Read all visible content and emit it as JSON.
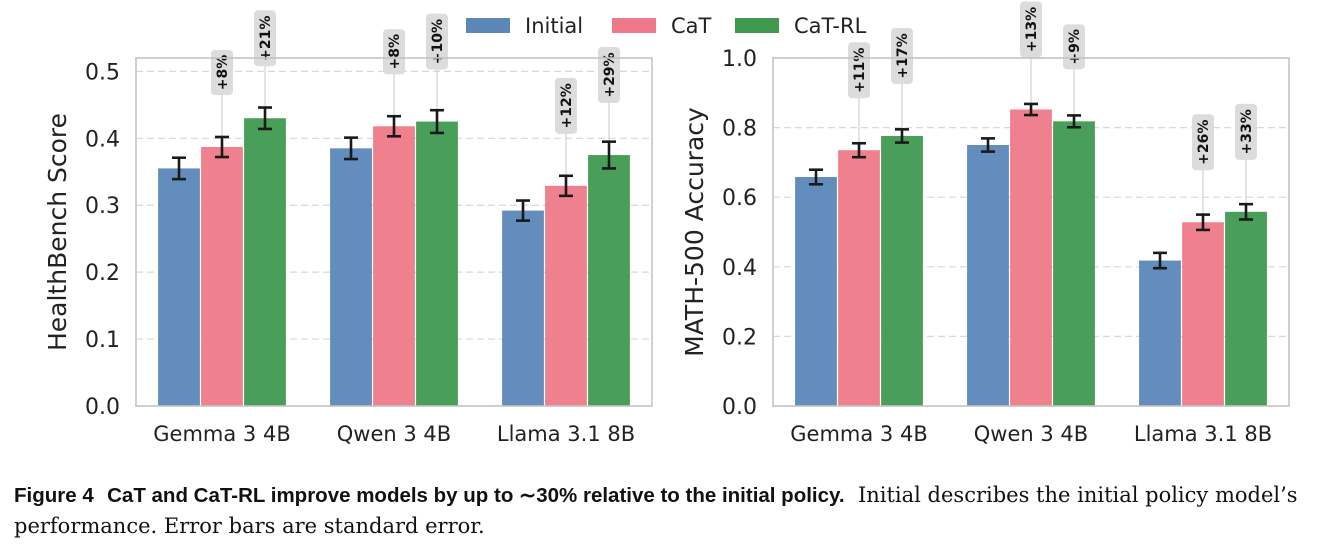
{
  "legend": {
    "placement": "top-center",
    "entries": [
      {
        "name": "Initial",
        "color": "#5b87b8"
      },
      {
        "name": "CaT",
        "color": "#ee7a89"
      },
      {
        "name": "CaT-RL",
        "color": "#3f9a50"
      }
    ]
  },
  "chart_data": [
    {
      "type": "bar",
      "ylabel": "HealthBench Score",
      "ylim": [
        0,
        0.52
      ],
      "yticks": [
        "0.0",
        "0.1",
        "0.2",
        "0.3",
        "0.4",
        "0.5"
      ],
      "grid": "horizontal dashed",
      "categories": [
        "Gemma 3 4B",
        "Qwen 3 4B",
        "Llama 3.1 8B"
      ],
      "series": [
        {
          "name": "Initial",
          "values": [
            0.355,
            0.385,
            0.292
          ],
          "errors": [
            0.016,
            0.016,
            0.015
          ]
        },
        {
          "name": "CaT",
          "values": [
            0.387,
            0.418,
            0.329
          ],
          "errors": [
            0.015,
            0.015,
            0.015
          ]
        },
        {
          "name": "CaT-RL",
          "values": [
            0.43,
            0.425,
            0.375
          ],
          "errors": [
            0.016,
            0.017,
            0.02
          ]
        }
      ],
      "annotations": [
        {
          "category": 0,
          "series": 1,
          "text": "+8%"
        },
        {
          "category": 0,
          "series": 2,
          "text": "+21%"
        },
        {
          "category": 1,
          "series": 1,
          "text": "+8%"
        },
        {
          "category": 1,
          "series": 2,
          "text": "+10%"
        },
        {
          "category": 2,
          "series": 1,
          "text": "+12%"
        },
        {
          "category": 2,
          "series": 2,
          "text": "+29%"
        }
      ]
    },
    {
      "type": "bar",
      "ylabel": "MATH-500 Accuracy",
      "ylim": [
        0,
        1.0
      ],
      "yticks": [
        "0.0",
        "0.2",
        "0.4",
        "0.6",
        "0.8",
        "1.0"
      ],
      "grid": "horizontal dashed",
      "categories": [
        "Gemma 3 4B",
        "Qwen 3 4B",
        "Llama 3.1 8B"
      ],
      "series": [
        {
          "name": "Initial",
          "values": [
            0.658,
            0.75,
            0.418
          ],
          "errors": [
            0.021,
            0.019,
            0.022
          ]
        },
        {
          "name": "CaT",
          "values": [
            0.735,
            0.852,
            0.528
          ],
          "errors": [
            0.02,
            0.016,
            0.022
          ]
        },
        {
          "name": "CaT-RL",
          "values": [
            0.776,
            0.818,
            0.558
          ],
          "errors": [
            0.019,
            0.017,
            0.022
          ]
        }
      ],
      "annotations": [
        {
          "category": 0,
          "series": 1,
          "text": "+11%"
        },
        {
          "category": 0,
          "series": 2,
          "text": "+17%"
        },
        {
          "category": 1,
          "series": 1,
          "text": "+13%"
        },
        {
          "category": 1,
          "series": 2,
          "text": "+9%"
        },
        {
          "category": 2,
          "series": 1,
          "text": "+26%"
        },
        {
          "category": 2,
          "series": 2,
          "text": "+33%"
        }
      ]
    }
  ],
  "caption": {
    "label": "Figure 4",
    "title": "CaT and CaT-RL improve models by up to ∼30% relative to the initial policy.",
    "body": "Initial describes the initial policy model’s performance. Error bars are standard error."
  }
}
